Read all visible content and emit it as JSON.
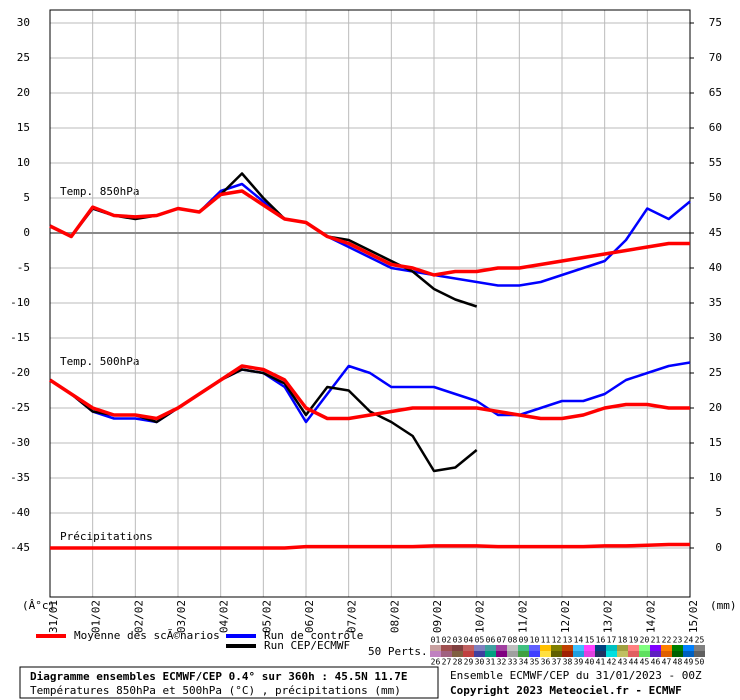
{
  "chart_data": {
    "type": "line",
    "labels": [
      "Temp. 850hPa",
      "Temp. 500hPa",
      "Précipitations"
    ],
    "y_unit": "(Â°c)",
    "y2_unit": "(mm)",
    "x": [
      0,
      0.5,
      1,
      1.5,
      2,
      2.5,
      3,
      3.5,
      4,
      4.5,
      5,
      5.5,
      6,
      6.5,
      7,
      7.5,
      8,
      8.5,
      9,
      9.5,
      10,
      10.5,
      11,
      11.5,
      12,
      12.5,
      13,
      13.5,
      14,
      14.5,
      15
    ],
    "xlim": [
      0,
      15
    ],
    "xticks": [
      {
        "value": 0,
        "label": "31/01"
      },
      {
        "value": 1,
        "label": "01/02"
      },
      {
        "value": 2,
        "label": "02/02"
      },
      {
        "value": 3,
        "label": "03/02"
      },
      {
        "value": 4,
        "label": "04/02"
      },
      {
        "value": 5,
        "label": "05/02"
      },
      {
        "value": 6,
        "label": "06/02"
      },
      {
        "value": 7,
        "label": "07/02"
      },
      {
        "value": 8,
        "label": "08/02"
      },
      {
        "value": 9,
        "label": "09/02"
      },
      {
        "value": 10,
        "label": "10/02"
      },
      {
        "value": 11,
        "label": "11/02"
      },
      {
        "value": 12,
        "label": "12/02"
      },
      {
        "value": 13,
        "label": "13/02"
      },
      {
        "value": 14,
        "label": "14/02"
      },
      {
        "value": 15,
        "label": "15/02"
      }
    ],
    "ylim": [
      -52,
      30
    ],
    "yticks": [
      30,
      25,
      20,
      15,
      10,
      5,
      0,
      -5,
      -10,
      -15,
      -20,
      -25,
      -30,
      -35,
      -40,
      -45
    ],
    "y2lim": [
      -7,
      75
    ],
    "y2ticks": [
      75,
      70,
      65,
      60,
      55,
      50,
      45,
      40,
      35,
      30,
      25,
      20,
      15,
      10,
      5,
      0
    ],
    "grid": true,
    "series": [
      {
        "name": "Run de contrôle",
        "color": "#0000ff",
        "width": 2.5,
        "values": [
          1,
          -0.5,
          3.5,
          2.5,
          2.2,
          2.5,
          3.5,
          3,
          6,
          7,
          4.5,
          2,
          1.5,
          -0.5,
          -2,
          -3.5,
          -5,
          -5.5,
          -6,
          -6.5,
          -7,
          -7.5,
          -7.5,
          -7,
          -6,
          -5,
          -4,
          -1,
          3.5,
          2,
          4.5
        ]
      },
      {
        "name": "Run de contrôle",
        "color": "#0000ff",
        "width": 2.5,
        "values": [
          -21,
          -23,
          -25.5,
          -26.5,
          -26.5,
          -27,
          -25,
          -23,
          -21,
          -19.5,
          -20,
          -22,
          -27,
          -23,
          -19,
          -20,
          -22,
          -22,
          -22,
          -23,
          -24,
          -26,
          -26,
          -25,
          -24,
          -24,
          -23,
          -21,
          -20,
          -19,
          -18.5
        ]
      },
      {
        "name": "Run CEP/ECMWF",
        "color": "#000000",
        "width": 2.5,
        "values": [
          1,
          -0.5,
          3.5,
          2.5,
          2,
          2.5,
          3.5,
          3,
          5.5,
          8.5,
          5,
          2,
          1.5,
          -0.5,
          -1,
          -2.5,
          -4,
          -5.5,
          -8,
          -9.5,
          -10.5,
          null,
          null,
          null,
          null,
          null,
          null,
          null,
          null,
          null,
          null
        ]
      },
      {
        "name": "Run CEP/ECMWF",
        "color": "#000000",
        "width": 2.5,
        "values": [
          -21,
          -23,
          -25.5,
          -26,
          -26,
          -27,
          -25,
          -23,
          -21,
          -19.5,
          -20,
          -21.5,
          -26,
          -22,
          -22.5,
          -25.5,
          -27,
          -29,
          -34,
          -33.5,
          -31,
          null,
          null,
          null,
          null,
          null,
          null,
          null,
          null,
          null,
          null
        ]
      },
      {
        "name": "Moyenne des scÃ©narios",
        "color": "#ff0000",
        "width": 3.5,
        "values": [
          1,
          -0.5,
          3.7,
          2.5,
          2.3,
          2.5,
          3.5,
          3,
          5.5,
          6,
          4,
          2,
          1.5,
          -0.5,
          -1.5,
          -3,
          -4.5,
          -5,
          -6,
          -5.5,
          -5.5,
          -5,
          -5,
          -4.5,
          -4,
          -3.5,
          -3,
          -2.5,
          -2,
          -1.5,
          -1.5
        ]
      },
      {
        "name": "Moyenne des scÃ©narios",
        "color": "#ff0000",
        "width": 3.5,
        "values": [
          -21,
          -23,
          -25,
          -26,
          -26,
          -26.5,
          -25,
          -23,
          -21,
          -19,
          -19.5,
          -21,
          -25,
          -26.5,
          -26.5,
          -26,
          -25.5,
          -25,
          -25,
          -25,
          -25,
          -25.5,
          -26,
          -26.5,
          -26.5,
          -26,
          -25,
          -24.5,
          -24.5,
          -25,
          -25
        ]
      },
      {
        "name": "Moyenne des scÃ©narios",
        "color": "#ff0000",
        "width": 3.5,
        "axis": "y2",
        "values": [
          0,
          0,
          0,
          0,
          0,
          0,
          0,
          0,
          0,
          0,
          0,
          0,
          0.2,
          0.2,
          0.2,
          0.2,
          0.2,
          0.2,
          0.3,
          0.3,
          0.3,
          0.2,
          0.2,
          0.2,
          0.2,
          0.2,
          0.3,
          0.3,
          0.4,
          0.5,
          0.5
        ]
      }
    ],
    "perturbations_label": "50 Perts.",
    "perturbations": [
      {
        "name": "01",
        "color": "#c8a0a0"
      },
      {
        "name": "02",
        "color": "#a05050"
      },
      {
        "name": "03",
        "color": "#804040"
      },
      {
        "name": "04",
        "color": "#c06060"
      },
      {
        "name": "05",
        "color": "#8080c0"
      },
      {
        "name": "06",
        "color": "#40a0a0"
      },
      {
        "name": "07",
        "color": "#a040a0"
      },
      {
        "name": "08",
        "color": "#c0c0c0"
      },
      {
        "name": "09",
        "color": "#40c080"
      },
      {
        "name": "10",
        "color": "#6060ff"
      },
      {
        "name": "11",
        "color": "#ffc000"
      },
      {
        "name": "12",
        "color": "#808000"
      },
      {
        "name": "13",
        "color": "#c04000"
      },
      {
        "name": "14",
        "color": "#40c0ff"
      },
      {
        "name": "15",
        "color": "#ff40ff"
      },
      {
        "name": "16",
        "color": "#004080"
      },
      {
        "name": "17",
        "color": "#00c0c0"
      },
      {
        "name": "18",
        "color": "#a0a040"
      },
      {
        "name": "19",
        "color": "#ff8080"
      },
      {
        "name": "20",
        "color": "#80ff80"
      },
      {
        "name": "21",
        "color": "#8000ff"
      },
      {
        "name": "22",
        "color": "#ff8000"
      },
      {
        "name": "23",
        "color": "#008000"
      },
      {
        "name": "24",
        "color": "#0080ff"
      },
      {
        "name": "25",
        "color": "#808080"
      },
      {
        "name": "26",
        "color": "#c080c0"
      },
      {
        "name": "27",
        "color": "#a06080"
      },
      {
        "name": "28",
        "color": "#806040"
      },
      {
        "name": "29",
        "color": "#c04040"
      },
      {
        "name": "30",
        "color": "#4040a0"
      },
      {
        "name": "31",
        "color": "#00a080"
      },
      {
        "name": "32",
        "color": "#800080"
      },
      {
        "name": "33",
        "color": "#a0a0a0"
      },
      {
        "name": "34",
        "color": "#40a040"
      },
      {
        "name": "35",
        "color": "#4040ff"
      },
      {
        "name": "36",
        "color": "#ffe040"
      },
      {
        "name": "37",
        "color": "#606000"
      },
      {
        "name": "38",
        "color": "#a02000"
      },
      {
        "name": "39",
        "color": "#20a0e0"
      },
      {
        "name": "40",
        "color": "#e040e0"
      },
      {
        "name": "41",
        "color": "#203060"
      },
      {
        "name": "42",
        "color": "#00e0e0"
      },
      {
        "name": "43",
        "color": "#c0c060"
      },
      {
        "name": "44",
        "color": "#e06060"
      },
      {
        "name": "45",
        "color": "#60e060"
      },
      {
        "name": "46",
        "color": "#6020c0"
      },
      {
        "name": "47",
        "color": "#e06000"
      },
      {
        "name": "48",
        "color": "#006000"
      },
      {
        "name": "49",
        "color": "#0060c0"
      },
      {
        "name": "50",
        "color": "#606060"
      }
    ],
    "footer": {
      "title": "Diagramme ensembles ECMWF/CEP 0.4° sur 360h : 45.5N 11.7E",
      "subtitle": "Températures 850hPa et 500hPa (°C) , précipitations (mm)",
      "run": "Ensemble ECMWF/CEP du 31/01/2023 - 00Z",
      "copyright": "Copyright 2023 Meteociel.fr - ECMWF"
    }
  }
}
